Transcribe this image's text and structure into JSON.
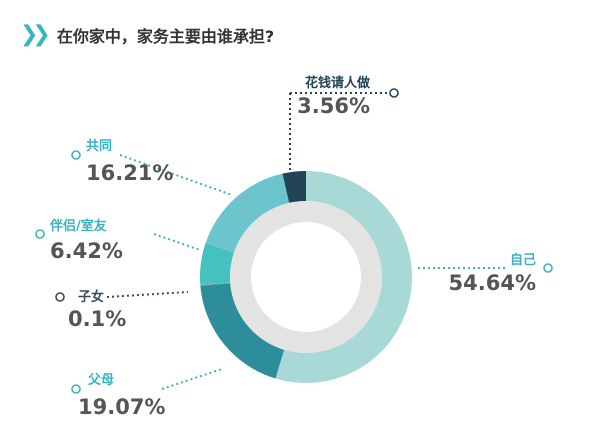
{
  "header": {
    "icon": "double-chevron-icon",
    "title": "在你家中，家务主要由谁承担?"
  },
  "chart_data": {
    "type": "pie",
    "title": "在你家中，家务主要由谁承担?",
    "categories": [
      "自己",
      "父母",
      "子女",
      "伴侣/室友",
      "共同",
      "花钱请人做"
    ],
    "values": [
      54.64,
      19.07,
      0.1,
      6.42,
      16.21,
      3.56
    ],
    "value_labels": [
      "54.64%",
      "19.07%",
      "0.1%",
      "6.42%",
      "16.21%",
      "3.56%"
    ],
    "colors": [
      "#a8d9d7",
      "#2e8d9a",
      "#8fa7ad",
      "#45c1bf",
      "#6cc5cc",
      "#234456"
    ],
    "label_colors": [
      "#3ab3c0",
      "#3ab3c0",
      "#3a4a5a",
      "#3ab3c0",
      "#3ab3c0",
      "#234456"
    ],
    "inner_ring_color": "#e3e4e2"
  }
}
